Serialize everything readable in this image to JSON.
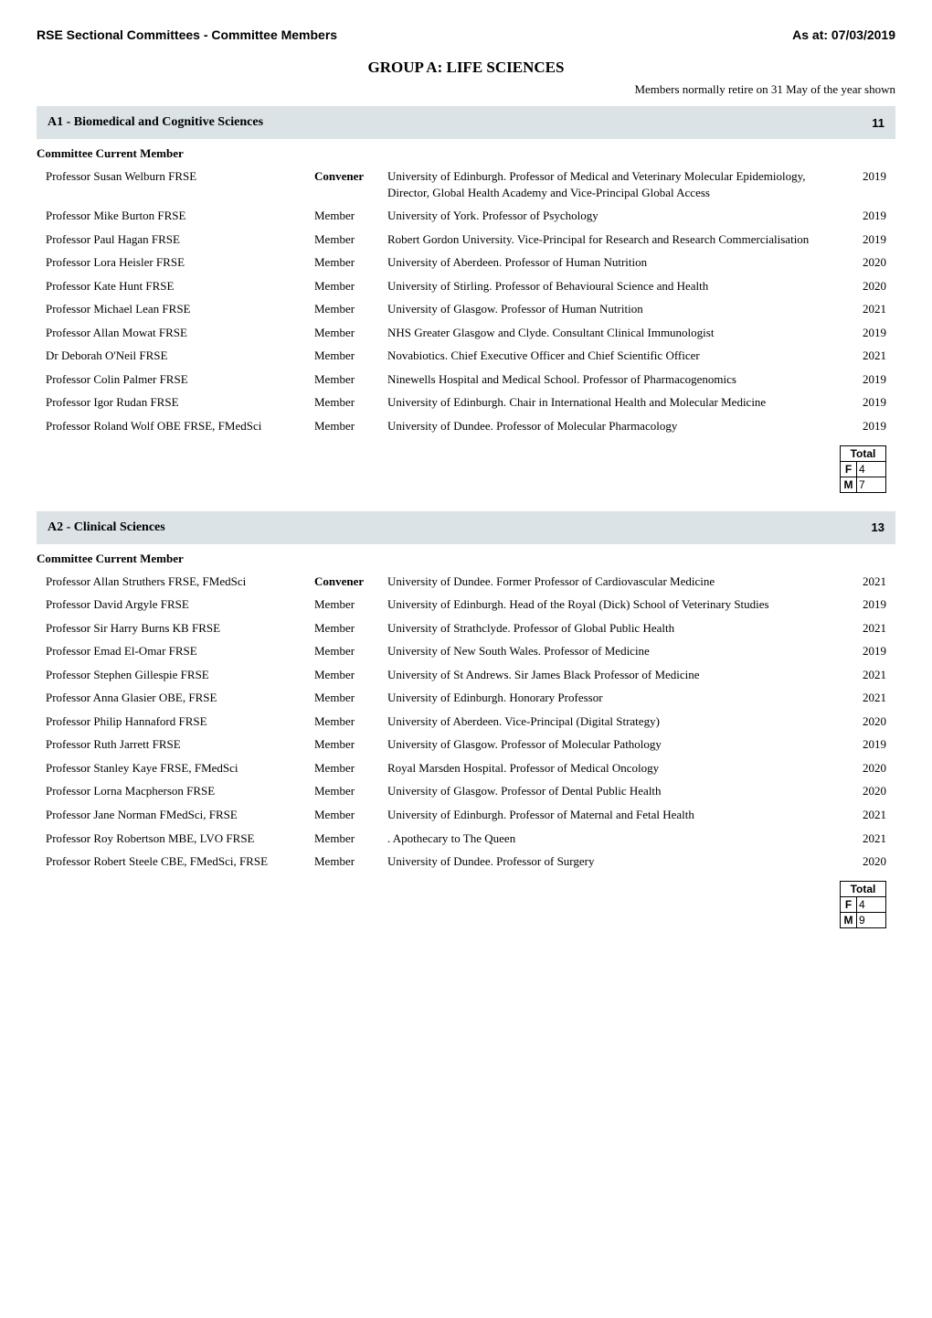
{
  "header": {
    "left": "RSE Sectional Committees - Committee Members",
    "right": "As at: 07/03/2019"
  },
  "group": {
    "title": "GROUP A: LIFE SCIENCES",
    "retire_note": "Members normally retire on 31 May of the year shown"
  },
  "subhead_label": "Committee Current Member",
  "role_labels": {
    "convener": "Convener",
    "member": "Member"
  },
  "sections": [
    {
      "title": "A1 - Biomedical and Cognitive Sciences",
      "count": "11",
      "members": [
        {
          "name": "Professor Susan Welburn FRSE",
          "role": "convener",
          "desc": "University of Edinburgh. Professor of Medical and Veterinary Molecular Epidemiology, Director, Global Health Academy and Vice-Principal Global Access",
          "year": "2019"
        },
        {
          "name": "Professor Mike Burton FRSE",
          "role": "member",
          "desc": "University of York. Professor of Psychology",
          "year": "2019"
        },
        {
          "name": "Professor Paul Hagan FRSE",
          "role": "member",
          "desc": "Robert Gordon University. Vice-Principal for Research and Research Commercialisation",
          "year": "2019"
        },
        {
          "name": "Professor Lora Heisler FRSE",
          "role": "member",
          "desc": "University of Aberdeen. Professor of Human Nutrition",
          "year": "2020"
        },
        {
          "name": "Professor Kate Hunt  FRSE",
          "role": "member",
          "desc": "University of Stirling. Professor of Behavioural Science and Health",
          "year": "2020"
        },
        {
          "name": "Professor Michael Lean  FRSE",
          "role": "member",
          "desc": "University of Glasgow. Professor of Human Nutrition",
          "year": "2021"
        },
        {
          "name": "Professor Allan Mowat FRSE",
          "role": "member",
          "desc": "NHS Greater Glasgow and Clyde. Consultant Clinical Immunologist",
          "year": "2019"
        },
        {
          "name": "Dr Deborah O'Neil  FRSE",
          "role": "member",
          "desc": "Novabiotics. Chief Executive Officer and Chief Scientific Officer",
          "year": "2021"
        },
        {
          "name": "Professor Colin Palmer FRSE",
          "role": "member",
          "desc": "Ninewells Hospital and Medical School. Professor of Pharmacogenomics",
          "year": "2019"
        },
        {
          "name": "Professor Igor Rudan FRSE",
          "role": "member",
          "desc": "University of Edinburgh. Chair in International Health and Molecular Medicine",
          "year": "2019"
        },
        {
          "name": "Professor Roland Wolf OBE FRSE, FMedSci",
          "role": "member",
          "desc": "University of Dundee. Professor of Molecular Pharmacology",
          "year": "2019"
        }
      ],
      "totals": {
        "label": "Total",
        "f_label": "F",
        "f_val": "4",
        "m_label": "M",
        "m_val": "7"
      }
    },
    {
      "title": "A2 - Clinical Sciences",
      "count": "13",
      "members": [
        {
          "name": "Professor Allan Struthers FRSE, FMedSci",
          "role": "convener",
          "desc": "University of Dundee. Former Professor of Cardiovascular Medicine",
          "year": "2021"
        },
        {
          "name": "Professor David Argyle FRSE",
          "role": "member",
          "desc": "University of Edinburgh. Head of the Royal (Dick) School of Veterinary Studies",
          "year": "2019"
        },
        {
          "name": "Professor Sir Harry Burns KB FRSE",
          "role": "member",
          "desc": "University of Strathclyde. Professor of Global Public Health",
          "year": "2021"
        },
        {
          "name": "Professor Emad El-Omar FRSE",
          "role": "member",
          "desc": "University of New South Wales. Professor of Medicine",
          "year": "2019"
        },
        {
          "name": "Professor Stephen Gillespie  FRSE",
          "role": "member",
          "desc": "University of St Andrews. Sir James Black Professor of Medicine",
          "year": "2021"
        },
        {
          "name": "Professor Anna Glasier OBE, FRSE",
          "role": "member",
          "desc": "University of Edinburgh. Honorary Professor",
          "year": "2021"
        },
        {
          "name": "Professor Philip Hannaford  FRSE",
          "role": "member",
          "desc": "University of Aberdeen. Vice-Principal (Digital Strategy)",
          "year": "2020"
        },
        {
          "name": "Professor Ruth Jarrett FRSE",
          "role": "member",
          "desc": "University of Glasgow. Professor of Molecular Pathology",
          "year": "2019"
        },
        {
          "name": "Professor Stanley Kaye FRSE, FMedSci",
          "role": "member",
          "desc": "Royal Marsden Hospital. Professor of Medical Oncology",
          "year": "2020"
        },
        {
          "name": "Professor Lorna Macpherson  FRSE",
          "role": "member",
          "desc": "University of Glasgow. Professor of Dental Public Health",
          "year": "2020"
        },
        {
          "name": "Professor Jane Norman FMedSci, FRSE",
          "role": "member",
          "desc": "University of Edinburgh. Professor of Maternal and Fetal Health",
          "year": "2021"
        },
        {
          "name": "Professor Roy Robertson MBE, LVO FRSE",
          "role": "member",
          "desc": ". Apothecary to The Queen",
          "year": "2021"
        },
        {
          "name": "Professor Robert Steele CBE, FMedSci, FRSE",
          "role": "member",
          "desc": "University of Dundee. Professor of Surgery",
          "year": "2020"
        }
      ],
      "totals": {
        "label": "Total",
        "f_label": "F",
        "f_val": "4",
        "m_label": "M",
        "m_val": "9"
      }
    }
  ]
}
